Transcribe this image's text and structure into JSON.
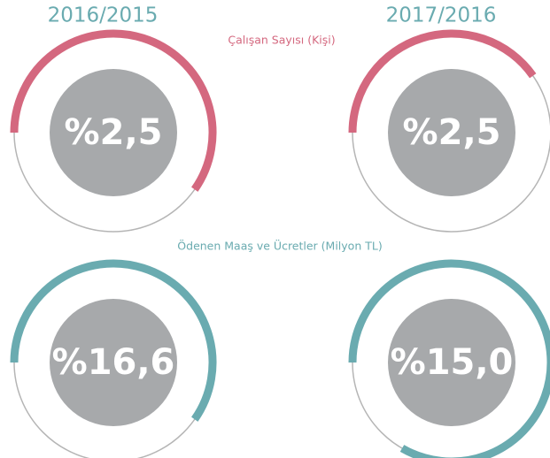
{
  "columns": [
    "2016/2015",
    "2017/2016"
  ],
  "sections": [
    {
      "label": "Çalışan Sayısı (Kişi)",
      "values": [
        "%2,5",
        "%2,5"
      ]
    },
    {
      "label": "Ödenen Maaş ve Ücretler (Milyon TL)",
      "values": [
        "%16,6",
        "%15,0"
      ]
    }
  ]
}
